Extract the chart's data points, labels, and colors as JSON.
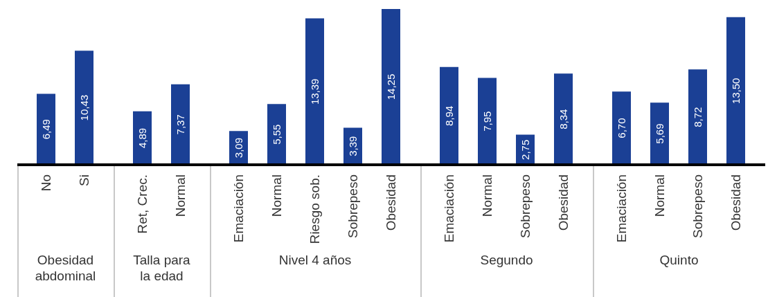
{
  "chart_data": [
    {
      "type": "bar",
      "xlabel": "Obesidad abdominal",
      "categories": [
        "No",
        "Si"
      ],
      "values": [
        6.49,
        10.43
      ],
      "value_labels": [
        "6,49",
        "10,43"
      ],
      "color": "#1b4095",
      "tick_labels": "x"
    },
    {
      "type": "bar",
      "xlabel": "Talla para la edad",
      "categories": [
        "Ret, Crec.",
        "Normal"
      ],
      "values": [
        4.89,
        7.37
      ],
      "value_labels": [
        "4,89",
        "7,37"
      ],
      "color": "#1b4095",
      "tick_labels": "x"
    },
    {
      "type": "bar",
      "xlabel": "Nivel 4 años",
      "categories": [
        "Emaciación",
        "Normal",
        "Riesgo sob.",
        "Sobrepeso",
        "Obesidad"
      ],
      "values": [
        3.09,
        5.55,
        13.39,
        3.39,
        14.25
      ],
      "value_labels": [
        "3,09",
        "5,55",
        "13,39",
        "3,39",
        "14,25"
      ],
      "color": "#1b4095",
      "tick_labels": "x"
    },
    {
      "type": "bar",
      "xlabel": "Segundo",
      "categories": [
        "Emaciación",
        "Normal",
        "Sobrepeso",
        "Obesidad"
      ],
      "values": [
        8.94,
        7.95,
        2.75,
        8.34
      ],
      "value_labels": [
        "8,94",
        "7,95",
        "2,75",
        "8,34"
      ],
      "color": "#1b4095",
      "tick_labels": "x"
    },
    {
      "type": "bar",
      "xlabel": "Quinto",
      "categories": [
        "Emaciación",
        "Normal",
        "Sobrepeso",
        "Obesidad"
      ],
      "values": [
        6.7,
        5.69,
        8.72,
        13.5
      ],
      "value_labels": [
        "6,70",
        "5,69",
        "8,72",
        "13,50"
      ],
      "color": "#1b4095",
      "tick_labels": "x"
    }
  ]
}
